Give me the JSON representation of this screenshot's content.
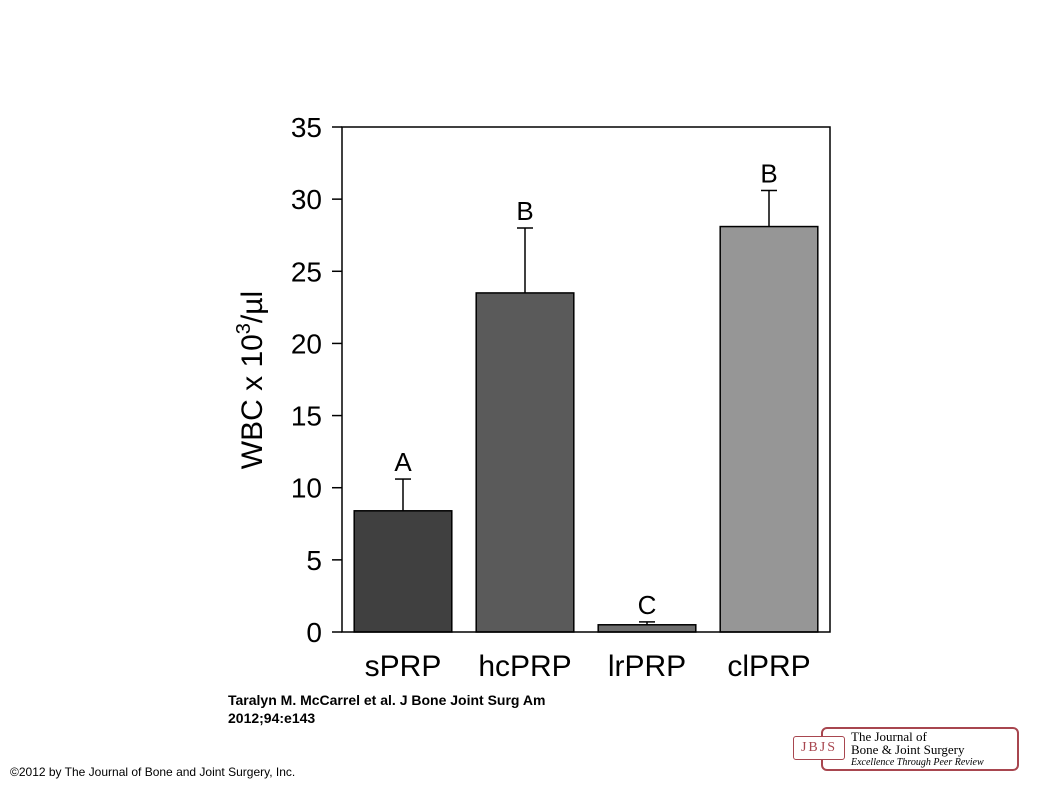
{
  "chart_data": {
    "type": "bar",
    "categories": [
      "sPRP",
      "hcPRP",
      "lrPRP",
      "clPRP"
    ],
    "values": [
      8.4,
      23.5,
      0.5,
      28.1
    ],
    "errors": [
      2.2,
      4.5,
      0.2,
      2.5
    ],
    "group_letters": [
      "A",
      "B",
      "C",
      "B"
    ],
    "bar_colors": [
      "#404040",
      "#5a5a5a",
      "#6e6e6e",
      "#969696"
    ],
    "ylabel_base": "WBC x 10",
    "ylabel_sup": "3",
    "ylabel_tail": "/µl",
    "ylim": [
      0,
      35
    ],
    "yticks": [
      0,
      5,
      10,
      15,
      20,
      25,
      30,
      35
    ],
    "grid": false
  },
  "citation": {
    "line1": "Taralyn M. McCarrel et al. J Bone Joint Surg Am",
    "line2": "2012;94:e143"
  },
  "copyright": "©2012 by The Journal of Bone and Joint Surgery, Inc.",
  "logo": {
    "mark": "JBJS",
    "line1": "The Journal of",
    "line2": "Bone & Joint Surgery",
    "line3": "Excellence Through Peer Review",
    "color": "#a8464f"
  }
}
